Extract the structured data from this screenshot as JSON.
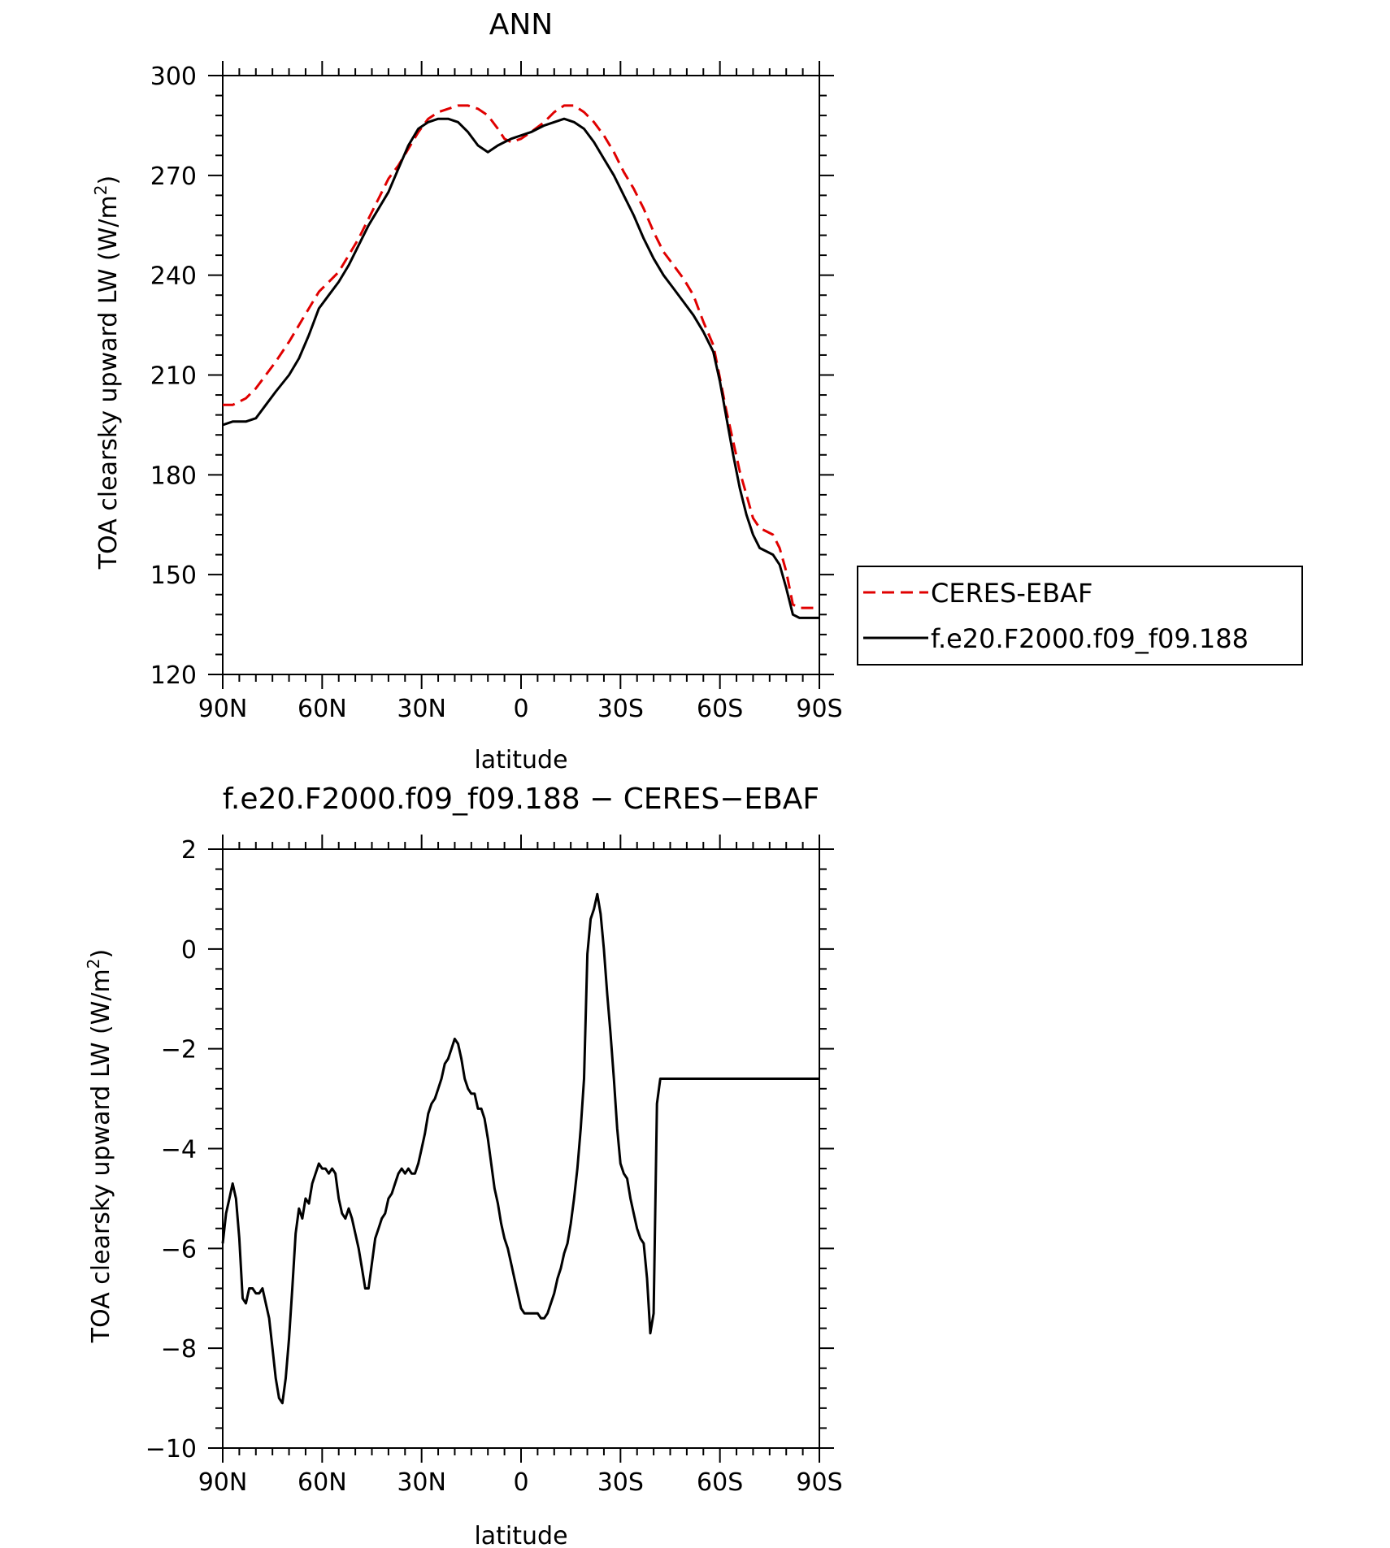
{
  "chart_data": [
    {
      "type": "line",
      "title": "ANN",
      "xlabel": "latitude",
      "ylabel": "TOA clearsky upward LW (W/m",
      "ylabel_sup": "2",
      "ylabel_end": ")",
      "xlim": [
        90,
        -90
      ],
      "ylim": [
        120,
        300
      ],
      "x_ticks": [
        {
          "value": 90,
          "label": "90N"
        },
        {
          "value": 60,
          "label": "60N"
        },
        {
          "value": 30,
          "label": "30N"
        },
        {
          "value": 0,
          "label": "0"
        },
        {
          "value": -30,
          "label": "30S"
        },
        {
          "value": -60,
          "label": "60S"
        },
        {
          "value": -90,
          "label": "90S"
        }
      ],
      "y_ticks": [
        120,
        150,
        180,
        210,
        240,
        270,
        300
      ],
      "x": [
        90,
        87,
        83,
        80,
        77,
        74,
        70,
        67,
        64,
        61,
        58,
        55,
        52,
        49,
        46,
        43,
        40,
        37,
        34,
        31,
        28,
        25,
        22,
        19,
        16,
        13,
        10,
        7,
        5,
        3,
        0,
        -3,
        -7,
        -10,
        -13,
        -16,
        -19,
        -22,
        -25,
        -28,
        -31,
        -34,
        -37,
        -40,
        -43,
        -46,
        -49,
        -52,
        -55,
        -58,
        -60,
        -62,
        -64,
        -66,
        -68,
        -70,
        -72,
        -74,
        -76,
        -78,
        -80,
        -82,
        -84,
        -86,
        -88,
        -90
      ],
      "series": [
        {
          "name": "CERES-EBAF",
          "color": "#e00000",
          "dash": "dashed",
          "values": [
            201,
            201,
            203,
            206,
            210,
            214,
            220,
            225,
            230,
            235,
            238,
            241,
            246,
            251,
            257,
            263,
            269,
            273,
            278,
            283,
            287,
            289,
            290,
            291,
            291,
            290,
            288,
            284,
            281,
            280,
            281,
            283,
            286,
            289,
            291,
            291,
            289,
            286,
            282,
            277,
            271,
            266,
            260,
            253,
            247,
            243,
            239,
            234,
            226,
            219,
            209,
            199,
            190,
            181,
            174,
            167,
            164,
            163,
            162,
            158,
            151,
            141,
            140,
            140,
            140,
            140
          ]
        },
        {
          "name": "f.e20.F2000.f09_f09.188",
          "color": "#000000",
          "dash": "solid",
          "values": [
            195,
            196,
            196,
            197,
            201,
            205,
            210,
            215,
            222,
            230,
            234,
            238,
            243,
            249,
            255,
            260,
            265,
            272,
            279,
            284,
            286,
            287,
            287,
            286,
            283,
            279,
            277,
            279,
            280,
            281,
            282,
            283,
            285,
            286,
            287,
            286,
            284,
            280,
            275,
            270,
            264,
            258,
            251,
            245,
            240,
            236,
            232,
            228,
            223,
            217,
            208,
            197,
            186,
            176,
            168,
            162,
            158,
            157,
            156,
            153,
            146,
            138,
            137,
            137,
            137,
            137
          ]
        }
      ],
      "legend": {
        "entries": [
          "CERES-EBAF",
          "f.e20.F2000.f09_f09.188"
        ],
        "placement": "right"
      }
    },
    {
      "type": "line",
      "title": "f.e20.F2000.f09_f09.188 − CERES−EBAF",
      "xlabel": "latitude",
      "ylabel": "TOA clearsky upward LW (W/m",
      "ylabel_sup": "2",
      "ylabel_end": ")",
      "xlim": [
        90,
        -90
      ],
      "ylim": [
        -10,
        2
      ],
      "x_ticks": [
        {
          "value": 90,
          "label": "90N"
        },
        {
          "value": 60,
          "label": "60N"
        },
        {
          "value": 30,
          "label": "30N"
        },
        {
          "value": 0,
          "label": "0"
        },
        {
          "value": -30,
          "label": "30S"
        },
        {
          "value": -60,
          "label": "60S"
        },
        {
          "value": -90,
          "label": "90S"
        }
      ],
      "y_ticks": [
        {
          "value": -10,
          "label": "−10"
        },
        {
          "value": -8,
          "label": "−8"
        },
        {
          "value": -6,
          "label": "−6"
        },
        {
          "value": -4,
          "label": "−4"
        },
        {
          "value": -2,
          "label": "−2"
        },
        {
          "value": 0,
          "label": "0"
        },
        {
          "value": 2,
          "label": "2"
        }
      ],
      "x": [
        90,
        89,
        88,
        87,
        86,
        85,
        84,
        83,
        82,
        81,
        80,
        79,
        78,
        77,
        76,
        75,
        74,
        73,
        72,
        71,
        70,
        69,
        68,
        67,
        66,
        65,
        64,
        63,
        62,
        61,
        60,
        59,
        58,
        57,
        56,
        55,
        54,
        53,
        52,
        51,
        50,
        49,
        48,
        47,
        46,
        45,
        44,
        43,
        42,
        41,
        40,
        39,
        38,
        37,
        36,
        35,
        34,
        33,
        32,
        31,
        30,
        29,
        28,
        27,
        26,
        25,
        24,
        23,
        22,
        21,
        20,
        19,
        18,
        17,
        16,
        15,
        14,
        13,
        12,
        11,
        10,
        9,
        8,
        7,
        6,
        5,
        4,
        3,
        2,
        1,
        0,
        -1,
        -2,
        -3,
        -4,
        -5,
        -6,
        -7,
        -8,
        -9,
        -10,
        -11,
        -12,
        -13,
        -14,
        -15,
        -16,
        -17,
        -18,
        -19,
        -20,
        -21,
        -22,
        -23,
        -24,
        -25,
        -26,
        -27,
        -28,
        -29,
        -30,
        -31,
        -32,
        -33,
        -34,
        -35,
        -36,
        -37,
        -38,
        -39,
        -40,
        -41,
        -42,
        -43,
        -44,
        -45,
        -46,
        -47,
        -48,
        -49,
        -50,
        -51,
        -52,
        -53,
        -54,
        -55,
        -56,
        -57,
        -58,
        -59,
        -60,
        -61,
        -62,
        -63,
        -64,
        -65,
        -66,
        -67,
        -68,
        -69,
        -70,
        -71,
        -72,
        -73,
        -74,
        -75,
        -76,
        -77,
        -78,
        -79,
        -80,
        -81,
        -82,
        -83,
        -84,
        -85,
        -86,
        -87,
        -88,
        -89,
        -90
      ],
      "series": [
        {
          "name": "f.e20.F2000.f09_f09.188 - CERES-EBAF",
          "color": "#000000",
          "dash": "solid",
          "values": [
            -5.9,
            -5.3,
            -5.0,
            -4.7,
            -5.0,
            -5.8,
            -7.0,
            -7.1,
            -6.8,
            -6.8,
            -6.9,
            -6.9,
            -6.8,
            -7.1,
            -7.4,
            -8.0,
            -8.6,
            -9.0,
            -9.1,
            -8.6,
            -7.8,
            -6.8,
            -5.7,
            -5.2,
            -5.4,
            -5.0,
            -5.1,
            -4.7,
            -4.5,
            -4.3,
            -4.4,
            -4.4,
            -4.5,
            -4.4,
            -4.5,
            -5.0,
            -5.3,
            -5.4,
            -5.2,
            -5.4,
            -5.7,
            -6.0,
            -6.4,
            -6.8,
            -6.8,
            -6.3,
            -5.8,
            -5.6,
            -5.4,
            -5.3,
            -5.0,
            -4.9,
            -4.7,
            -4.5,
            -4.4,
            -4.5,
            -4.4,
            -4.5,
            -4.5,
            -4.3,
            -4.0,
            -3.7,
            -3.3,
            -3.1,
            -3.0,
            -2.8,
            -2.6,
            -2.3,
            -2.2,
            -2.0,
            -1.8,
            -1.9,
            -2.2,
            -2.6,
            -2.8,
            -2.9,
            -2.9,
            -3.2,
            -3.2,
            -3.4,
            -3.8,
            -4.3,
            -4.8,
            -5.1,
            -5.5,
            -5.8,
            -6.0,
            -6.3,
            -6.6,
            -6.9,
            -7.2,
            -7.3,
            -7.3,
            -7.3,
            -7.3,
            -7.3,
            -7.4,
            -7.4,
            -7.3,
            -7.1,
            -6.9,
            -6.6,
            -6.4,
            -6.1,
            -5.9,
            -5.5,
            -5.0,
            -4.4,
            -3.6,
            -2.6,
            -0.1,
            0.6,
            0.8,
            1.1,
            0.7,
            0.0,
            -0.9,
            -1.7,
            -2.6,
            -3.6,
            -4.3,
            -4.5,
            -4.6,
            -5.0,
            -5.3,
            -5.6,
            -5.8,
            -5.9,
            -6.6,
            -7.7,
            -7.3,
            -3.1,
            -2.6,
            -2.6,
            -2.6,
            -2.6,
            -2.6,
            -2.6,
            -2.6,
            -2.6,
            -2.6,
            -2.6,
            -2.6,
            -2.6,
            -2.6,
            -2.6,
            -2.6,
            -2.6,
            -2.6,
            -2.6,
            -2.6,
            -2.6,
            -2.6,
            -2.6,
            -2.6,
            -2.6,
            -2.6,
            -2.6,
            -2.6,
            -2.6,
            -2.6,
            -2.6,
            -2.6,
            -2.6,
            -2.6,
            -2.6,
            -2.6,
            -2.6,
            -2.6,
            -2.6,
            -2.6,
            -2.6,
            -2.6,
            -2.6,
            -2.6,
            -2.6,
            -2.6,
            -2.6,
            -2.6,
            -2.6,
            -2.6
          ]
        }
      ]
    }
  ]
}
